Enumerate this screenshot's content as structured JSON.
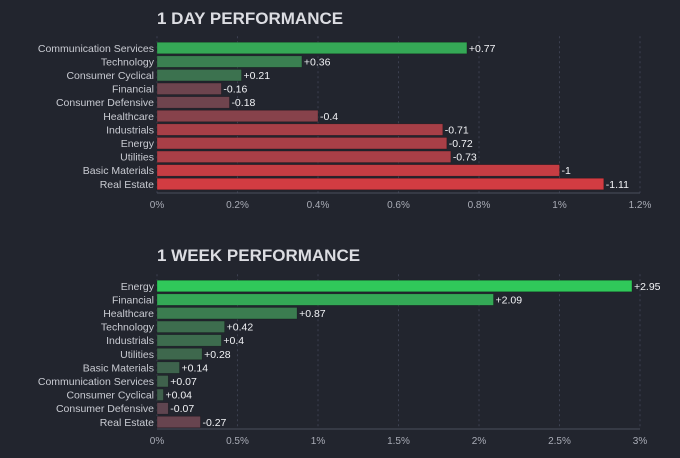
{
  "chart_data": [
    {
      "type": "bar",
      "orientation": "horizontal",
      "title": "1 DAY PERFORMANCE",
      "categories": [
        "Communication Services",
        "Technology",
        "Consumer Cyclical",
        "Financial",
        "Consumer Defensive",
        "Healthcare",
        "Industrials",
        "Energy",
        "Utilities",
        "Basic Materials",
        "Real Estate"
      ],
      "values": [
        0.77,
        0.36,
        0.21,
        -0.16,
        -0.18,
        -0.4,
        -0.71,
        -0.72,
        -0.73,
        -1,
        -1.11
      ],
      "value_labels": [
        "+0.77",
        "+0.36",
        "+0.21",
        "-0.16",
        "-0.18",
        "-0.4",
        "-0.71",
        "-0.72",
        "-0.73",
        "-1",
        "-1.11"
      ],
      "xticks": [
        "0%",
        "0.2%",
        "0.4%",
        "0.6%",
        "0.8%",
        "1%",
        "1.2%"
      ],
      "xlim": [
        0,
        1.2
      ],
      "bar_length": "absolute value",
      "grid": true
    },
    {
      "type": "bar",
      "orientation": "horizontal",
      "title": "1 WEEK PERFORMANCE",
      "categories": [
        "Energy",
        "Financial",
        "Healthcare",
        "Technology",
        "Industrials",
        "Utilities",
        "Basic Materials",
        "Communication Services",
        "Consumer Cyclical",
        "Consumer Defensive",
        "Real Estate"
      ],
      "values": [
        2.95,
        2.09,
        0.87,
        0.42,
        0.4,
        0.28,
        0.14,
        0.07,
        0.04,
        -0.07,
        -0.27
      ],
      "value_labels": [
        "+2.95",
        "+2.09",
        "+0.87",
        "+0.42",
        "+0.4",
        "+0.28",
        "+0.14",
        "+0.07",
        "+0.04",
        "-0.07",
        "-0.27"
      ],
      "xticks": [
        "0%",
        "0.5%",
        "1%",
        "1.5%",
        "2%",
        "2.5%",
        "3%"
      ],
      "xlim": [
        0,
        3
      ],
      "bar_length": "absolute value",
      "grid": true
    }
  ],
  "colors": {
    "background": "#22252e",
    "positive_strong": "#30c85a",
    "positive_weak": "#3f5e4c",
    "negative_weak": "#5c4550",
    "negative_strong": "#d23c42"
  }
}
